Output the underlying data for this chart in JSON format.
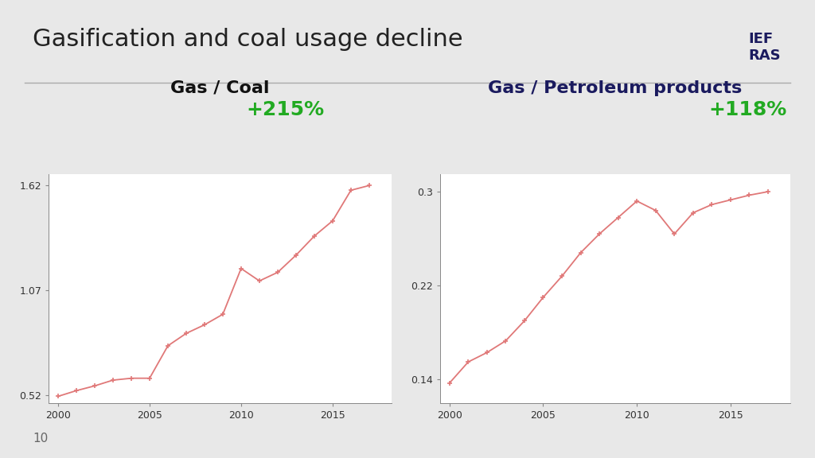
{
  "title": "Gasification and coal usage decline",
  "title_fontsize": 22,
  "title_color": "#222222",
  "page_number": "10",
  "background_color": "#e8e8e8",
  "plot_bg_color": "#ffffff",
  "divider_color": "#aaaaaa",
  "chart1_title_part1": "Gas / ",
  "chart1_title_part2": "Coal",
  "chart1_pct": "+215%",
  "chart1_years": [
    2000,
    2001,
    2002,
    2003,
    2004,
    2005,
    2006,
    2007,
    2008,
    2009,
    2010,
    2011,
    2012,
    2013,
    2014,
    2015,
    2016,
    2017
  ],
  "chart1_values": [
    0.515,
    0.545,
    0.57,
    0.6,
    0.61,
    0.61,
    0.78,
    0.845,
    0.89,
    0.945,
    1.185,
    1.12,
    1.165,
    1.255,
    1.355,
    1.435,
    1.595,
    1.62
  ],
  "chart1_yticks": [
    0.52,
    1.07,
    1.62
  ],
  "chart1_ylim": [
    0.48,
    1.68
  ],
  "chart1_xticks": [
    2000,
    2005,
    2010,
    2015
  ],
  "chart2_title_part1": "Gas / ",
  "chart2_title_part2": "Petroleum products",
  "chart2_pct": "+118%",
  "chart2_years": [
    2000,
    2001,
    2002,
    2003,
    2004,
    2005,
    2006,
    2007,
    2008,
    2009,
    2010,
    2011,
    2012,
    2013,
    2014,
    2015,
    2016,
    2017
  ],
  "chart2_values": [
    0.137,
    0.155,
    0.163,
    0.173,
    0.19,
    0.21,
    0.228,
    0.248,
    0.264,
    0.278,
    0.292,
    0.284,
    0.264,
    0.282,
    0.289,
    0.293,
    0.297,
    0.3
  ],
  "chart2_yticks": [
    0.14,
    0.22,
    0.3
  ],
  "chart2_ylim": [
    0.12,
    0.315
  ],
  "chart2_xticks": [
    2000,
    2005,
    2010,
    2015
  ],
  "line_color": "#e07878",
  "marker": "+",
  "marker_size": 5,
  "line_width": 1.3,
  "pct_color": "#22aa22",
  "chart1_title_color": "#111111",
  "chart2_title_color": "#1a1a5e",
  "tick_fontsize": 9,
  "chart_title_fontsize": 16,
  "pct_fontsize": 18
}
